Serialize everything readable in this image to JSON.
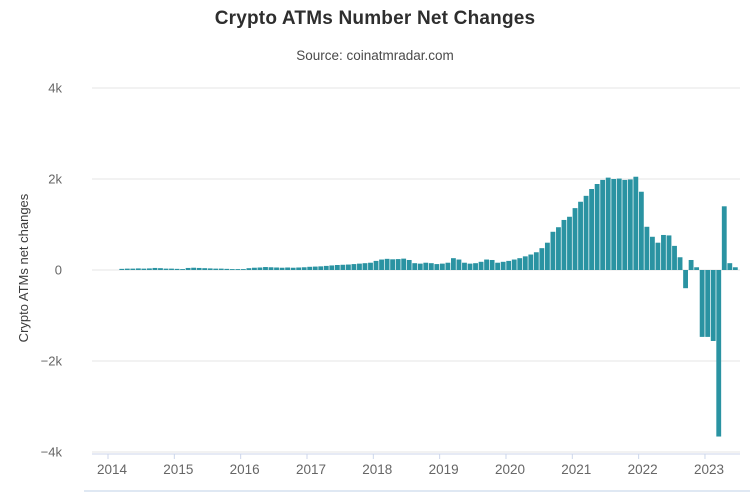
{
  "title": "Crypto ATMs Number Net Changes",
  "subtitle": "Source: coinatmradar.com",
  "y_axis_title": "Crypto ATMs net changes",
  "colors": {
    "bar": "#2a93a2",
    "gridline": "#e6e6e6",
    "axis_line": "#ccd6eb",
    "tick_label": "#666666",
    "title_text": "#2e2e2e"
  },
  "chart_data": {
    "type": "bar",
    "title": "Crypto ATMs Number Net Changes",
    "subtitle": "Source: coinatmradar.com",
    "xlabel": "",
    "ylabel": "Crypto ATMs net changes",
    "ylim": [
      -4000,
      4000
    ],
    "grid": true,
    "legend": "none",
    "x_tick_labels": [
      "2014",
      "2015",
      "2016",
      "2017",
      "2018",
      "2019",
      "2020",
      "2021",
      "2022",
      "2023"
    ],
    "y_tick_labels": [
      "4k",
      "2k",
      "0",
      "−2k",
      "−4k"
    ],
    "y_tick_values": [
      4000,
      2000,
      0,
      -2000,
      -4000
    ],
    "series_name": "Crypto ATMs net changes",
    "start_month": "2014-03",
    "values_by_year": {
      "2014": [
        25,
        30,
        30,
        35,
        30,
        35,
        45,
        40,
        30,
        30
      ],
      "2015": [
        25,
        20,
        45,
        50,
        45,
        40,
        35,
        30,
        30,
        25,
        10,
        5
      ],
      "2016": [
        10,
        40,
        50,
        55,
        65,
        60,
        55,
        50,
        55,
        50,
        55,
        60
      ],
      "2017": [
        70,
        75,
        80,
        90,
        100,
        110,
        115,
        120,
        130,
        140,
        150,
        160
      ],
      "2018": [
        200,
        230,
        245,
        235,
        240,
        250,
        220,
        150,
        140,
        160,
        150,
        130
      ],
      "2019": [
        140,
        160,
        260,
        230,
        160,
        140,
        150,
        180,
        230,
        220,
        160,
        180
      ],
      "2020": [
        200,
        230,
        260,
        300,
        340,
        390,
        480,
        600,
        840,
        940,
        1100,
        1170
      ],
      "2021": [
        1360,
        1500,
        1630,
        1780,
        1890,
        1980,
        2030,
        2000,
        2010,
        1980,
        1990,
        2050
      ],
      "2022": [
        1720,
        950,
        730,
        600,
        770,
        760,
        530,
        280,
        -400,
        220,
        60,
        -1470
      ],
      "2023": [
        -1470,
        -1560,
        -3660,
        1400,
        150,
        60
      ]
    }
  }
}
